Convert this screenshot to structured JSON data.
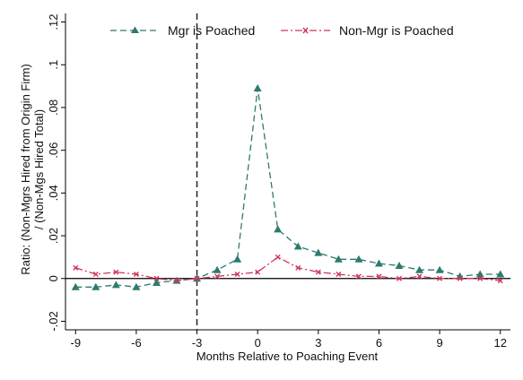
{
  "chart_data": {
    "type": "line",
    "title": "",
    "xlabel": "Months Relative to Poaching Event",
    "ylabel_lines": [
      "Ratio: (Non-Mgrs Hired from Origin Firm)",
      "/ (Non-Mgs Hired Total)"
    ],
    "xlim": [
      -9.5,
      12.5
    ],
    "ylim": [
      -0.024,
      0.124
    ],
    "xticks": [
      -9,
      -6,
      -3,
      0,
      3,
      6,
      9,
      12
    ],
    "xtick_labels": [
      "-9",
      "-6",
      "-3",
      "0",
      "3",
      "6",
      "9",
      "12"
    ],
    "yticks": [
      -0.02,
      0,
      0.02,
      0.04,
      0.06,
      0.08,
      0.1,
      0.12
    ],
    "ytick_labels": [
      "-.02",
      "0",
      ".02",
      ".04",
      ".06",
      ".08",
      ".1",
      ".12"
    ],
    "reference_vline_x": -3,
    "reference_hline_y": 0,
    "legend_position": "top",
    "series": [
      {
        "name": "Mgr is Poached",
        "color": "#2f7a6e",
        "marker": "triangle",
        "line_style": "dashed",
        "x": [
          -9,
          -8,
          -7,
          -6,
          -5,
          -4,
          -3,
          -2,
          -1,
          0,
          1,
          2,
          3,
          4,
          5,
          6,
          7,
          8,
          9,
          10,
          11,
          12
        ],
        "values": [
          -0.004,
          -0.004,
          -0.003,
          -0.004,
          -0.002,
          -0.001,
          0.0,
          0.004,
          0.009,
          0.089,
          0.023,
          0.015,
          0.012,
          0.009,
          0.009,
          0.007,
          0.006,
          0.004,
          0.004,
          0.001,
          0.002,
          0.002
        ]
      },
      {
        "name": "Non-Mgr is Poached",
        "color": "#d0355a",
        "marker": "x",
        "line_style": "dash-dot",
        "x": [
          -9,
          -8,
          -7,
          -6,
          -5,
          -4,
          -3,
          -2,
          -1,
          0,
          1,
          2,
          3,
          4,
          5,
          6,
          7,
          8,
          9,
          10,
          11,
          12
        ],
        "values": [
          0.005,
          0.002,
          0.003,
          0.002,
          0.0,
          -0.001,
          0.0,
          0.001,
          0.002,
          0.003,
          0.01,
          0.005,
          0.003,
          0.002,
          0.001,
          0.001,
          0.0,
          0.001,
          0.0,
          0.0,
          0.0,
          -0.001
        ]
      }
    ]
  }
}
